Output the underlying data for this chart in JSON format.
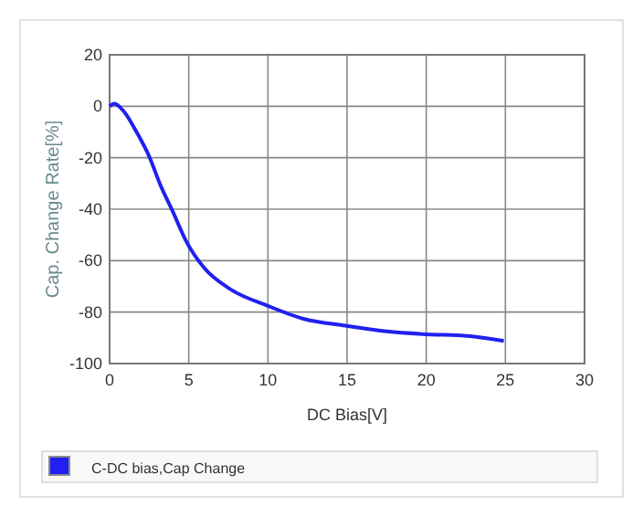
{
  "chart_data": {
    "type": "line",
    "xlabel": "DC Bias[V]",
    "ylabel": "Cap. Change Rate[%]",
    "xlim": [
      0,
      30
    ],
    "ylim": [
      -100,
      20
    ],
    "xticks": [
      0,
      5,
      10,
      15,
      20,
      25,
      30
    ],
    "yticks": [
      -100,
      -80,
      -60,
      -40,
      -20,
      0,
      20
    ],
    "grid": true,
    "legend": "bottom",
    "marker": "none",
    "line_style": "solid",
    "series": [
      {
        "name": "C-DC bias,Cap Change",
        "color": "#2020f0",
        "x": [
          0,
          0.3,
          0.9,
          1.7,
          2.5,
          3.2,
          4.0,
          4.8,
          6,
          7.6,
          10,
          12.3,
          14.9,
          17.5,
          20,
          22.6,
          24.9
        ],
        "values": [
          0,
          1,
          -2,
          -10,
          -19.5,
          -30.5,
          -41,
          -52,
          -63,
          -71,
          -77.6,
          -82.7,
          -85.3,
          -87.5,
          -88.6,
          -89.3,
          -91.2
        ]
      }
    ]
  }
}
